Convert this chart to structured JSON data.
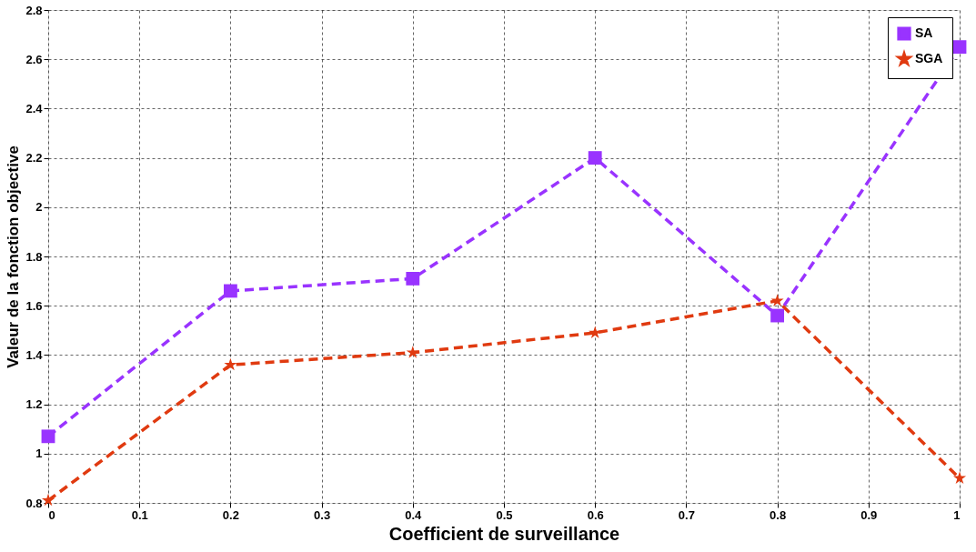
{
  "chart_data": {
    "type": "line",
    "xlabel": "Coefficient de surveillance",
    "ylabel": "Valeur de la fonction objective",
    "x": [
      0,
      0.2,
      0.4,
      0.6,
      0.8,
      1
    ],
    "series": [
      {
        "name": "SA",
        "color": "#9933ff",
        "marker": "square",
        "values": [
          1.07,
          1.66,
          1.71,
          2.2,
          1.56,
          2.65
        ]
      },
      {
        "name": "SGA",
        "color": "#e03a10",
        "marker": "star",
        "values": [
          0.81,
          1.36,
          1.41,
          1.49,
          1.62,
          0.9
        ]
      }
    ],
    "xlim": [
      0,
      1
    ],
    "xticks": [
      0,
      0.1,
      0.2,
      0.3,
      0.4,
      0.5,
      0.6,
      0.7,
      0.8,
      0.9,
      1
    ],
    "ylim": [
      0.8,
      2.8
    ],
    "yticks": [
      0.8,
      1,
      1.2,
      1.4,
      1.6,
      1.8,
      2,
      2.2,
      2.4,
      2.6,
      2.8
    ],
    "grid": true,
    "legend": "top right",
    "line_style": "dashed"
  }
}
